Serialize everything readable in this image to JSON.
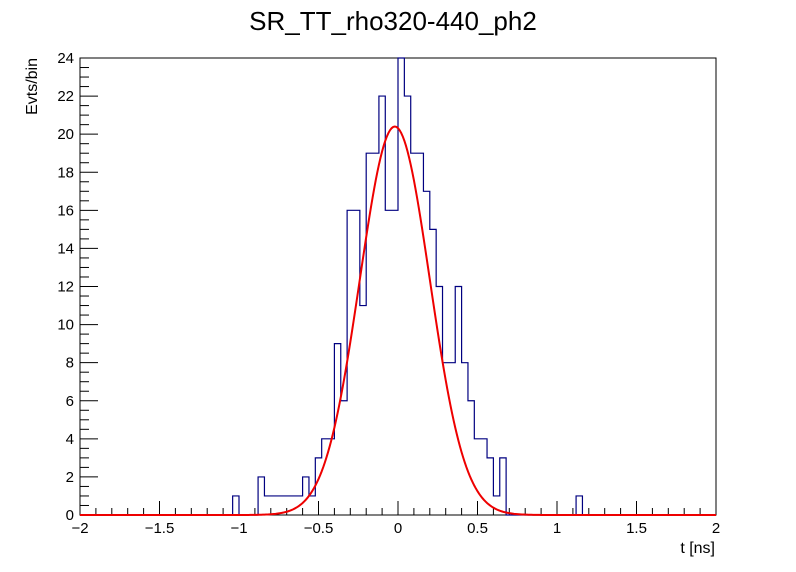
{
  "chart_data": {
    "type": "histogram",
    "title": "SR_TT_rho320-440_ph2",
    "xlabel": "t [ns]",
    "ylabel": "Evts/bin",
    "xlim": [
      -2,
      2
    ],
    "ylim": [
      0,
      24
    ],
    "x_ticks": [
      -2,
      -1.5,
      -1,
      -0.5,
      0,
      0.5,
      1,
      1.5,
      2
    ],
    "x_tick_labels": [
      "−2",
      "−1.5",
      "−1",
      "−0.5",
      "0",
      "0.5",
      "1",
      "1.5",
      "2"
    ],
    "y_ticks": [
      0,
      2,
      4,
      6,
      8,
      10,
      12,
      14,
      16,
      18,
      20,
      22,
      24
    ],
    "y_tick_labels": [
      "0",
      "2",
      "4",
      "6",
      "8",
      "10",
      "12",
      "14",
      "16",
      "18",
      "20",
      "22",
      "24"
    ],
    "grid": false,
    "histogram": {
      "bin_width": 0.04,
      "color": "#000080",
      "bins": [
        {
          "x0": -1.04,
          "x1": -1.0,
          "y": 1
        },
        {
          "x0": -0.88,
          "x1": -0.84,
          "y": 2
        },
        {
          "x0": -0.84,
          "x1": -0.8,
          "y": 1
        },
        {
          "x0": -0.8,
          "x1": -0.76,
          "y": 1
        },
        {
          "x0": -0.76,
          "x1": -0.72,
          "y": 1
        },
        {
          "x0": -0.72,
          "x1": -0.68,
          "y": 1
        },
        {
          "x0": -0.68,
          "x1": -0.64,
          "y": 1
        },
        {
          "x0": -0.64,
          "x1": -0.6,
          "y": 1
        },
        {
          "x0": -0.6,
          "x1": -0.56,
          "y": 2
        },
        {
          "x0": -0.56,
          "x1": -0.52,
          "y": 1
        },
        {
          "x0": -0.52,
          "x1": -0.48,
          "y": 3
        },
        {
          "x0": -0.48,
          "x1": -0.44,
          "y": 4
        },
        {
          "x0": -0.44,
          "x1": -0.4,
          "y": 4
        },
        {
          "x0": -0.4,
          "x1": -0.36,
          "y": 9
        },
        {
          "x0": -0.36,
          "x1": -0.32,
          "y": 6
        },
        {
          "x0": -0.32,
          "x1": -0.28,
          "y": 16
        },
        {
          "x0": -0.28,
          "x1": -0.24,
          "y": 16
        },
        {
          "x0": -0.24,
          "x1": -0.2,
          "y": 11
        },
        {
          "x0": -0.2,
          "x1": -0.16,
          "y": 19
        },
        {
          "x0": -0.16,
          "x1": -0.12,
          "y": 19
        },
        {
          "x0": -0.12,
          "x1": -0.08,
          "y": 22
        },
        {
          "x0": -0.08,
          "x1": -0.04,
          "y": 16
        },
        {
          "x0": -0.04,
          "x1": 0.0,
          "y": 16
        },
        {
          "x0": 0.0,
          "x1": 0.04,
          "y": 24
        },
        {
          "x0": 0.04,
          "x1": 0.08,
          "y": 22
        },
        {
          "x0": 0.08,
          "x1": 0.12,
          "y": 19
        },
        {
          "x0": 0.12,
          "x1": 0.16,
          "y": 19
        },
        {
          "x0": 0.16,
          "x1": 0.2,
          "y": 17
        },
        {
          "x0": 0.2,
          "x1": 0.24,
          "y": 15
        },
        {
          "x0": 0.24,
          "x1": 0.28,
          "y": 12
        },
        {
          "x0": 0.28,
          "x1": 0.32,
          "y": 8
        },
        {
          "x0": 0.32,
          "x1": 0.36,
          "y": 8
        },
        {
          "x0": 0.36,
          "x1": 0.4,
          "y": 12
        },
        {
          "x0": 0.4,
          "x1": 0.44,
          "y": 8
        },
        {
          "x0": 0.44,
          "x1": 0.48,
          "y": 6
        },
        {
          "x0": 0.48,
          "x1": 0.52,
          "y": 4
        },
        {
          "x0": 0.52,
          "x1": 0.56,
          "y": 4
        },
        {
          "x0": 0.56,
          "x1": 0.6,
          "y": 3
        },
        {
          "x0": 0.6,
          "x1": 0.64,
          "y": 1
        },
        {
          "x0": 0.64,
          "x1": 0.68,
          "y": 3
        },
        {
          "x0": 1.12,
          "x1": 1.16,
          "y": 1
        }
      ]
    },
    "fit": {
      "type": "gaussian",
      "color": "#ee0000",
      "amplitude": 20.4,
      "mean": -0.02,
      "sigma": 0.22
    }
  }
}
